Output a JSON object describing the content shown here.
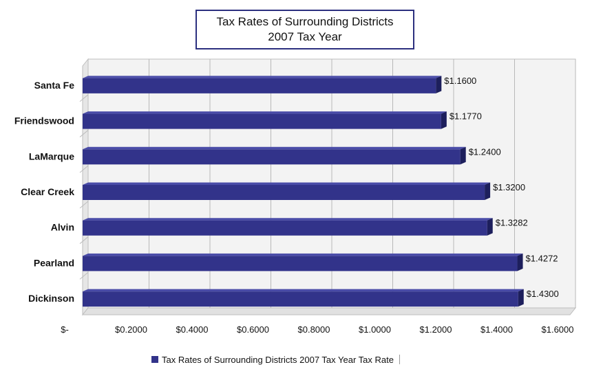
{
  "chart_data": {
    "type": "bar",
    "orientation": "horizontal",
    "title": "Tax Rates of Surrounding Districts",
    "subtitle": "2007 Tax Year",
    "categories": [
      "Santa Fe",
      "Friendswood",
      "LaMarque",
      "Clear Creek",
      "Alvin",
      "Pearland",
      "Dickinson"
    ],
    "series": [
      {
        "name": "Tax Rates of Surrounding Districts  2007 Tax Year Tax Rate",
        "values": [
          1.16,
          1.177,
          1.24,
          1.32,
          1.3282,
          1.4272,
          1.43
        ],
        "labels": [
          "$1.1600",
          "$1.1770",
          "$1.2400",
          "$1.3200",
          "$1.3282",
          "$1.4272",
          "$1.4300"
        ]
      }
    ],
    "xlim": [
      0,
      1.6
    ],
    "xticks": [
      0,
      0.2,
      0.4,
      0.6,
      0.8,
      1.0,
      1.2,
      1.4,
      1.6
    ],
    "xtick_labels": [
      "$-",
      "$0.2000",
      "$0.4000",
      "$0.6000",
      "$0.8000",
      "$1.0000",
      "$1.2000",
      "$1.4000",
      "$1.6000"
    ],
    "grid": true,
    "legend_position": "bottom",
    "bar_color": "#32338a",
    "bar_side_color": "#1d1f5c",
    "grid_color": "#b8b8b8"
  }
}
